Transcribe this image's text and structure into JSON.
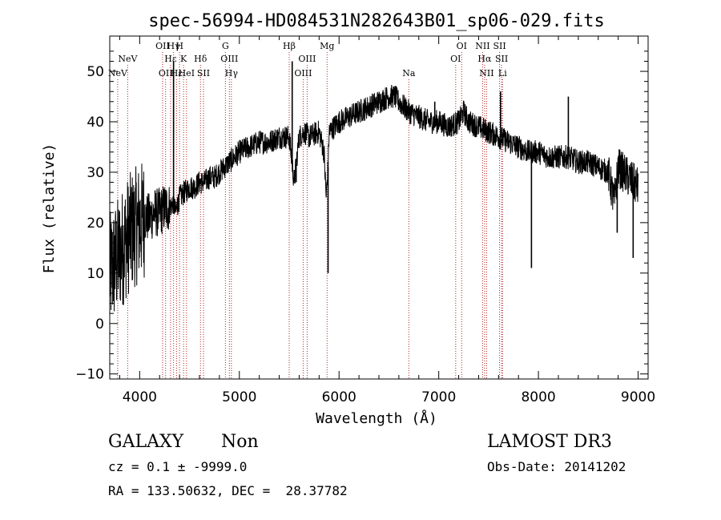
{
  "chart_data": {
    "type": "line",
    "title": "spec-56994-HD084531N282643B01_sp06-029.fits",
    "xlabel": "Wavelength (Å)",
    "ylabel": "Flux (relative)",
    "xlim": [
      3700,
      9100
    ],
    "ylim": [
      -11,
      57
    ],
    "xticks": [
      4000,
      5000,
      6000,
      7000,
      8000,
      9000
    ],
    "yticks": [
      -10,
      0,
      10,
      20,
      30,
      40,
      50
    ],
    "series": [
      {
        "name": "flux",
        "x": [
          3700,
          3750,
          3800,
          3850,
          3900,
          3950,
          4000,
          4050,
          4100,
          4150,
          4200,
          4250,
          4300,
          4340,
          4360,
          4400,
          4450,
          4500,
          4550,
          4600,
          4650,
          4700,
          4750,
          4800,
          4850,
          4900,
          4950,
          5000,
          5100,
          5200,
          5300,
          5400,
          5500,
          5550,
          5600,
          5650,
          5700,
          5800,
          5850,
          5870,
          5890,
          5900,
          5950,
          6000,
          6100,
          6200,
          6300,
          6400,
          6500,
          6560,
          6600,
          6700,
          6800,
          6900,
          7000,
          7100,
          7200,
          7250,
          7300,
          7400,
          7500,
          7600,
          7700,
          7800,
          7900,
          8000,
          8100,
          8200,
          8300,
          8400,
          8500,
          8600,
          8700,
          8760,
          8800,
          8850,
          8900,
          8950,
          9000
        ],
        "y": [
          10,
          12,
          14,
          16,
          18,
          19,
          20,
          21,
          21,
          22,
          22,
          23,
          23,
          24,
          22,
          25,
          26,
          27,
          27,
          28,
          28,
          29,
          29,
          30,
          31,
          32,
          33,
          34,
          35,
          36,
          36,
          37,
          37,
          28,
          37,
          38,
          37,
          38,
          34,
          25,
          31,
          38,
          39,
          40,
          41,
          42,
          43,
          44,
          45,
          45,
          44,
          42,
          41,
          40,
          40,
          39,
          40,
          42,
          40,
          39,
          38,
          37,
          36,
          35,
          34,
          34,
          33,
          33,
          33,
          32,
          32,
          31,
          30,
          24,
          31,
          30,
          29,
          28,
          27
        ],
        "spikes": [
          {
            "x": 4340,
            "y": 52
          },
          {
            "x": 4380,
            "y": 25
          },
          {
            "x": 5530,
            "y": 52
          },
          {
            "x": 5570,
            "y": 28
          },
          {
            "x": 5890,
            "y": 10
          },
          {
            "x": 6960,
            "y": 44
          },
          {
            "x": 7620,
            "y": 46
          },
          {
            "x": 7930,
            "y": 11
          },
          {
            "x": 8300,
            "y": 45
          },
          {
            "x": 8790,
            "y": 18
          },
          {
            "x": 8950,
            "y": 13
          }
        ]
      }
    ],
    "lines": [
      {
        "label": "NeV",
        "x": 3780,
        "row": 3
      },
      {
        "label": "NeV",
        "x": 3880,
        "row": 2
      },
      {
        "label": "OII",
        "x": 4230,
        "row": 1
      },
      {
        "label": "OII",
        "x": 4260,
        "row": 3
      },
      {
        "label": "Hε",
        "x": 4310,
        "row": 2
      },
      {
        "label": "Hγ",
        "x": 4340,
        "row": 1
      },
      {
        "label": "Hε",
        "x": 4370,
        "row": 3
      },
      {
        "label": "H",
        "x": 4400,
        "row": 1
      },
      {
        "label": "K",
        "x": 4440,
        "row": 2
      },
      {
        "label": "HeI",
        "x": 4470,
        "row": 3
      },
      {
        "label": "Hδ",
        "x": 4610,
        "row": 2
      },
      {
        "label": "SII",
        "x": 4640,
        "row": 3
      },
      {
        "label": "G",
        "x": 4860,
        "row": 1
      },
      {
        "label": "OIII",
        "x": 4900,
        "row": 2
      },
      {
        "label": "Hγ",
        "x": 4920,
        "row": 3
      },
      {
        "label": "Hβ",
        "x": 5500,
        "row": 1
      },
      {
        "label": "OIII",
        "x": 5640,
        "row": 3
      },
      {
        "label": "OIII",
        "x": 5680,
        "row": 2
      },
      {
        "label": "Mg",
        "x": 5880,
        "row": 1
      },
      {
        "label": "Na",
        "x": 6700,
        "row": 3
      },
      {
        "label": "OI",
        "x": 7170,
        "row": 2
      },
      {
        "label": "OI",
        "x": 7230,
        "row": 1
      },
      {
        "label": "NII",
        "x": 7440,
        "row": 1
      },
      {
        "label": "Hα",
        "x": 7460,
        "row": 2
      },
      {
        "label": "NII",
        "x": 7480,
        "row": 3
      },
      {
        "label": "SII",
        "x": 7610,
        "row": 1
      },
      {
        "label": "SII",
        "x": 7630,
        "row": 2
      },
      {
        "label": "Li",
        "x": 7640,
        "row": 3
      }
    ]
  },
  "info": {
    "class": "GALAXY",
    "subclass": "Non",
    "survey": "LAMOST DR3",
    "cz": "cz = 0.1 ± -9999.0",
    "obsdate": "Obs-Date: 20141202",
    "radec": "RA = 133.50632, DEC =  28.37782"
  },
  "colors": {
    "line": "#000000",
    "marker": "#b22222"
  }
}
